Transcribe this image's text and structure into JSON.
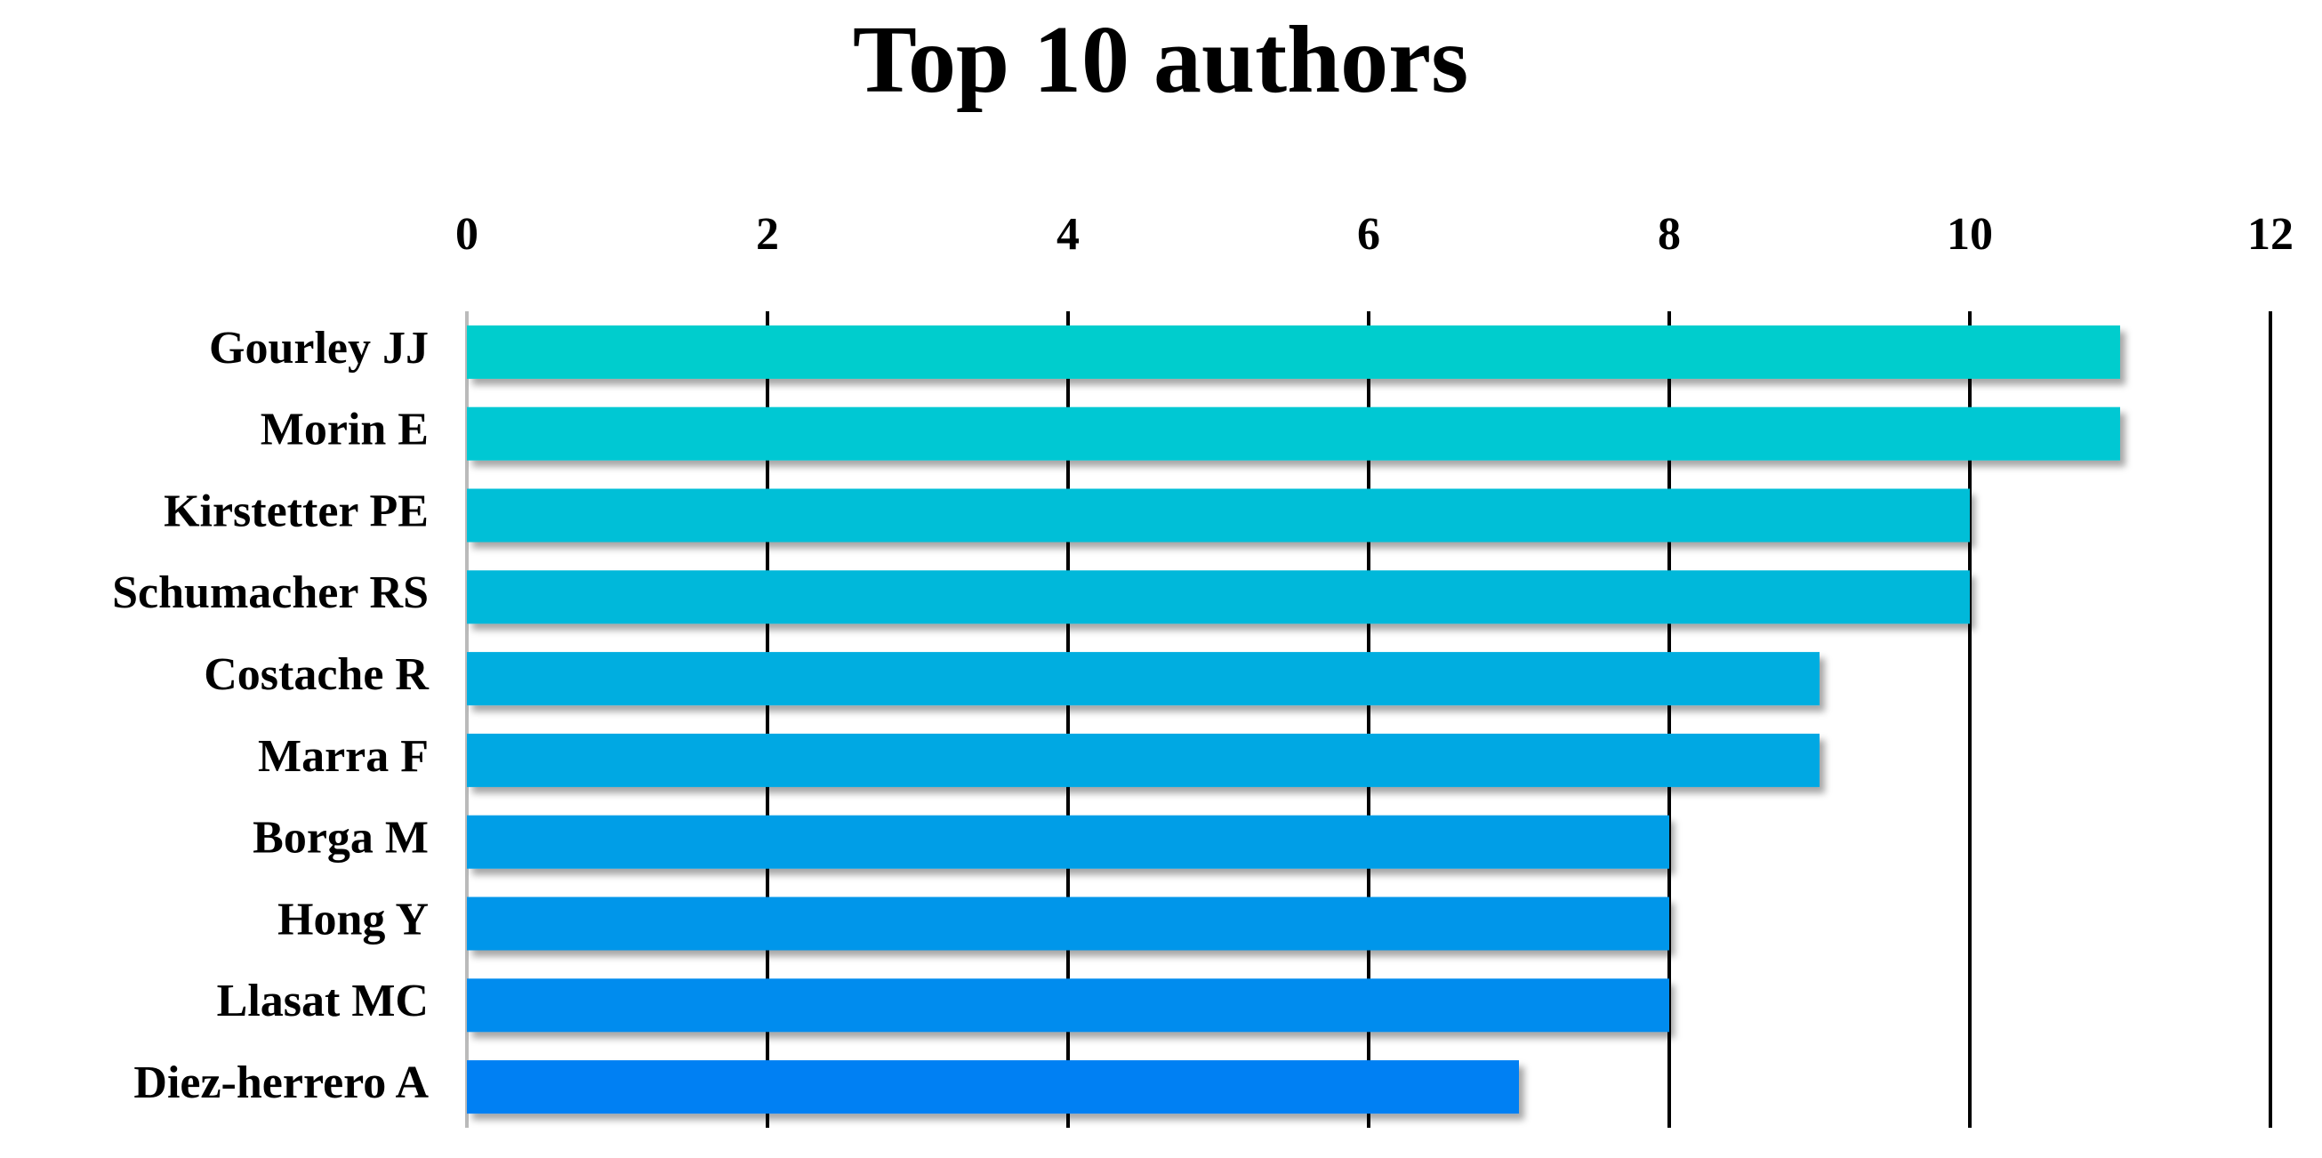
{
  "chart_data": {
    "type": "bar",
    "orientation": "horizontal",
    "title": "Top 10 authors",
    "categories": [
      "Gourley JJ",
      "Morin E",
      "Kirstetter PE",
      "Schumacher RS",
      "Costache R",
      "Marra F",
      "Borga M",
      "Hong Y",
      "Llasat MC",
      "Diez-herrero A"
    ],
    "values": [
      11,
      11,
      10,
      10,
      9,
      9,
      8,
      8,
      8,
      7
    ],
    "colors": [
      "#00cdcd",
      "#00c8d3",
      "#00bfd7",
      "#00b8da",
      "#00aee0",
      "#00a8e3",
      "#009ee7",
      "#0096ea",
      "#008cee",
      "#0080f3"
    ],
    "xlim": [
      0,
      12
    ],
    "xticks": [
      0,
      2,
      4,
      6,
      8,
      10,
      12
    ],
    "grid": true
  }
}
